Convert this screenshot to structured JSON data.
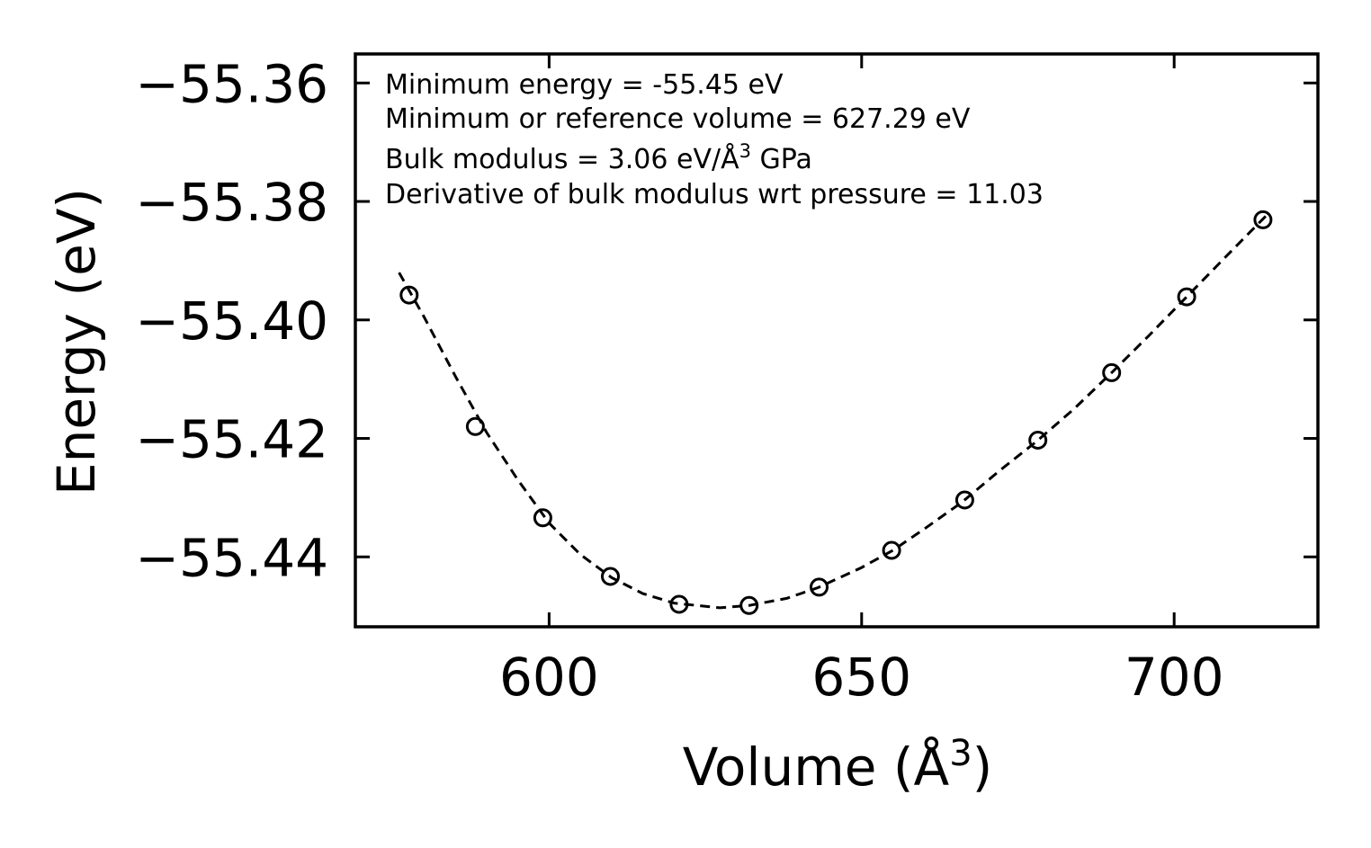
{
  "chart_data": {
    "type": "scatter",
    "xlabel": "Volume (Å",
    "xlabel_sup": "3",
    "xlabel_close": ")",
    "ylabel": "Energy (eV)",
    "xlim": [
      569,
      723
    ],
    "ylim": [
      -55.4518,
      -55.3551
    ],
    "x_ticks": [
      {
        "value": 600,
        "label": "600"
      },
      {
        "value": 650,
        "label": "650"
      },
      {
        "value": 700,
        "label": "700"
      }
    ],
    "y_ticks": [
      {
        "value": -55.36,
        "label": "−55.36"
      },
      {
        "value": -55.38,
        "label": "−55.38"
      },
      {
        "value": -55.4,
        "label": "−55.40"
      },
      {
        "value": -55.42,
        "label": "−55.42"
      },
      {
        "value": -55.44,
        "label": "−55.44"
      }
    ],
    "annotations": {
      "line1": "Minimum energy = -55.45 eV",
      "line2": "Minimum or reference volume = 627.29 eV",
      "line3_pre": "Bulk modulus = 3.06 eV/Å",
      "line3_sup": "3",
      "line3_post": " GPa",
      "line4": "Derivative of bulk modulus wrt pressure = 11.03"
    },
    "series": [
      {
        "name": "data",
        "marker": "open-circle",
        "points": [
          {
            "x": 577.6,
            "y": -55.3958
          },
          {
            "x": 588.2,
            "y": -55.418
          },
          {
            "x": 599.0,
            "y": -55.4334
          },
          {
            "x": 609.8,
            "y": -55.4433
          },
          {
            "x": 620.8,
            "y": -55.448
          },
          {
            "x": 632.0,
            "y": -55.4482
          },
          {
            "x": 643.2,
            "y": -55.4451
          },
          {
            "x": 654.8,
            "y": -55.4389
          },
          {
            "x": 666.5,
            "y": -55.4304
          },
          {
            "x": 678.2,
            "y": -55.4203
          },
          {
            "x": 690.0,
            "y": -55.4089
          },
          {
            "x": 702.0,
            "y": -55.3961
          },
          {
            "x": 714.2,
            "y": -55.3831
          }
        ]
      },
      {
        "name": "fit",
        "style": "dashed",
        "points": [
          {
            "x": 576.0,
            "y": -55.392
          },
          {
            "x": 580.0,
            "y": -55.3995
          },
          {
            "x": 585.0,
            "y": -55.4095
          },
          {
            "x": 590.0,
            "y": -55.419
          },
          {
            "x": 595.0,
            "y": -55.427
          },
          {
            "x": 600.0,
            "y": -55.4343
          },
          {
            "x": 605.0,
            "y": -55.4396
          },
          {
            "x": 610.0,
            "y": -55.4435
          },
          {
            "x": 615.0,
            "y": -55.4462
          },
          {
            "x": 620.0,
            "y": -55.4478
          },
          {
            "x": 627.3,
            "y": -55.4486
          },
          {
            "x": 632.0,
            "y": -55.4482
          },
          {
            "x": 638.0,
            "y": -55.447
          },
          {
            "x": 643.0,
            "y": -55.4452
          },
          {
            "x": 650.0,
            "y": -55.4418
          },
          {
            "x": 655.0,
            "y": -55.4389
          },
          {
            "x": 660.0,
            "y": -55.4353
          },
          {
            "x": 666.0,
            "y": -55.4308
          },
          {
            "x": 672.0,
            "y": -55.4255
          },
          {
            "x": 678.0,
            "y": -55.4205
          },
          {
            "x": 684.0,
            "y": -55.415
          },
          {
            "x": 690.0,
            "y": -55.4089
          },
          {
            "x": 696.0,
            "y": -55.4026
          },
          {
            "x": 702.0,
            "y": -55.3961
          },
          {
            "x": 708.0,
            "y": -55.3896
          },
          {
            "x": 715.0,
            "y": -55.3821
          }
        ]
      }
    ]
  }
}
